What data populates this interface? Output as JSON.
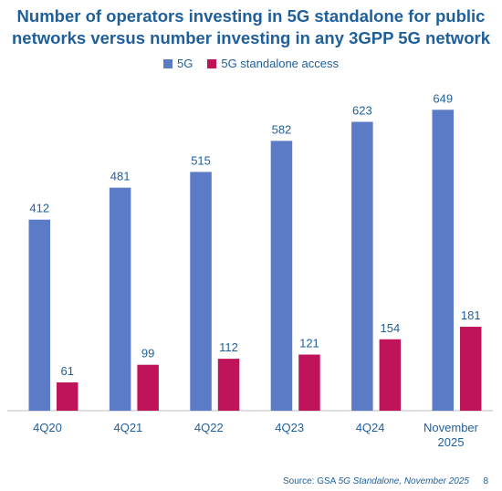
{
  "chart_data": {
    "type": "bar",
    "title_lines": [
      "Number of operators investing in 5G standalone for public",
      "networks versus number investing in any 3GPP 5G network"
    ],
    "categories": [
      [
        "4Q20"
      ],
      [
        "4Q21"
      ],
      [
        "4Q22"
      ],
      [
        "4Q23"
      ],
      [
        "4Q24"
      ],
      [
        "November",
        "2025"
      ]
    ],
    "series": [
      {
        "name": "5G",
        "color": "#5b7bc7",
        "values": [
          412,
          481,
          515,
          582,
          623,
          649
        ]
      },
      {
        "name": "5G standalone access",
        "color": "#c0145a",
        "values": [
          61,
          99,
          112,
          121,
          154,
          181
        ]
      }
    ],
    "ylim": [
      0,
      700
    ],
    "grid": false,
    "legend_position": "top-center",
    "data_labels": true
  },
  "footer": {
    "source_prefix": "Source: GSA ",
    "source_italic": "5G Standalone, November 2025",
    "page_number": "8"
  }
}
